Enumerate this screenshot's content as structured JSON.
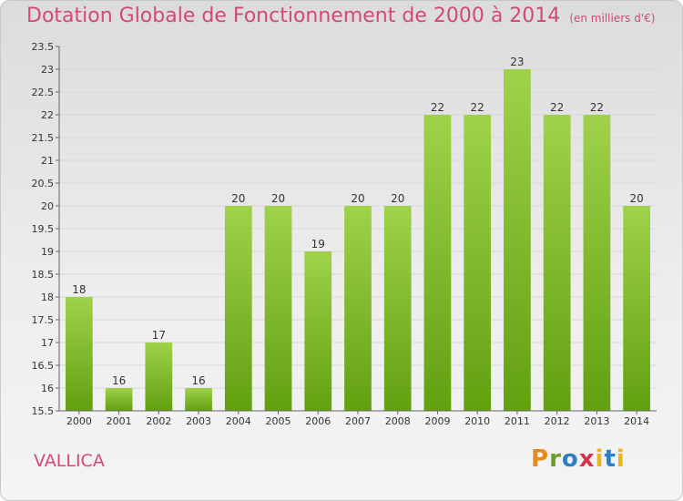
{
  "title": "Dotation Globale de Fonctionnement de 2000 à 2014",
  "unit": "(en milliers d'€)",
  "commune": "VALLICA",
  "logo": [
    "P",
    "r",
    "o",
    "x",
    "i",
    "t",
    "i"
  ],
  "colors": {
    "bar_top": "#9fd24a",
    "bar_bottom": "#62a010",
    "title": "#d24a73",
    "grid": "#d8d8d8"
  },
  "chart_data": {
    "type": "bar",
    "title": "Dotation Globale de Fonctionnement de 2000 à 2014",
    "xlabel": "",
    "ylabel": "",
    "categories": [
      "2000",
      "2001",
      "2002",
      "2003",
      "2004",
      "2005",
      "2006",
      "2007",
      "2008",
      "2009",
      "2010",
      "2011",
      "2012",
      "2013",
      "2014"
    ],
    "values": [
      18,
      16,
      17,
      16,
      20,
      20,
      19,
      20,
      20,
      22,
      22,
      23,
      22,
      22,
      20
    ],
    "labels": [
      "18",
      "16",
      "17",
      "16",
      "20",
      "20",
      "19",
      "20",
      "20",
      "22",
      "22",
      "23",
      "22",
      "22",
      "20"
    ],
    "ylim": [
      15.5,
      23.5
    ],
    "yticks": [
      "15.5",
      "16",
      "16.5",
      "17",
      "17.5",
      "18",
      "18.5",
      "19",
      "19.5",
      "20",
      "20.5",
      "21",
      "21.5",
      "22",
      "22.5",
      "23",
      "23.5"
    ],
    "grid": true
  }
}
